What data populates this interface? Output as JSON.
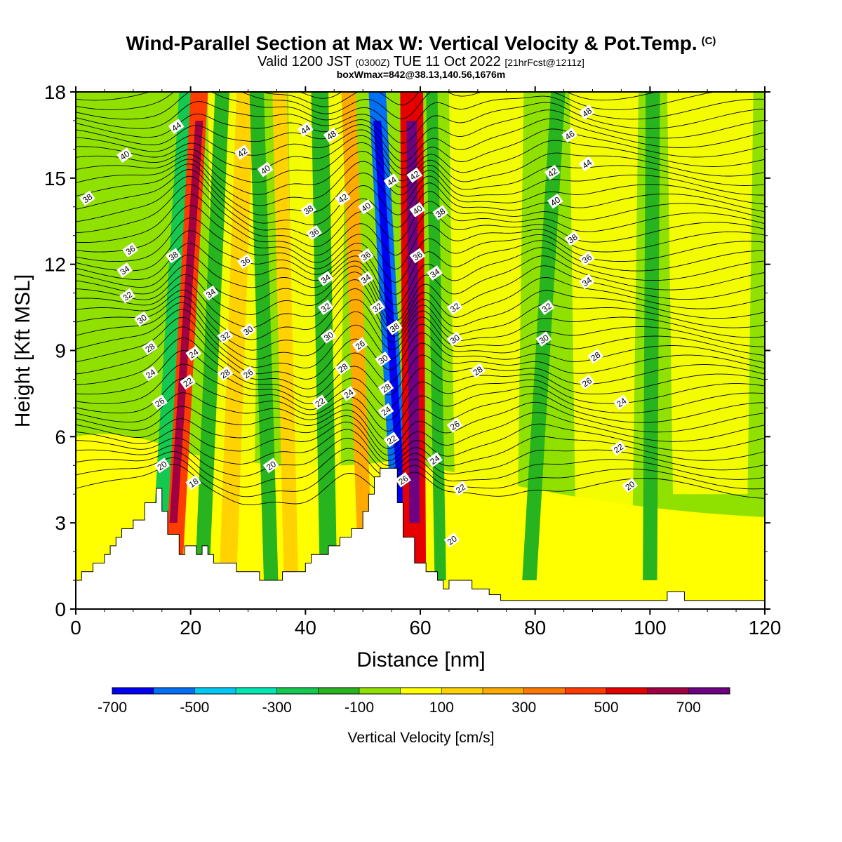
{
  "header": {
    "title": "Wind-Parallel Section at Max W: Vertical Velocity & Pot.Temp.",
    "copyright": "(C)",
    "valid_main": "Valid 1200 JST",
    "valid_utc": "(0300Z)",
    "valid_date": "TUE 11 Oct 2022",
    "forecast": "[21hrFcst@1211z]",
    "boxinfo": "boxWmax=842@38.13,140.56,1676m"
  },
  "colorbar": {
    "title": "Vertical Velocity [cm/s]",
    "levels": [
      -700,
      -600,
      -500,
      -400,
      -300,
      -200,
      -100,
      0,
      100,
      200,
      300,
      400,
      500,
      600,
      700,
      800
    ],
    "colors": [
      "#0000f5",
      "#0070f5",
      "#00c8f5",
      "#00e6b4",
      "#14c850",
      "#28b41e",
      "#91e100",
      "#ffff00",
      "#ffd200",
      "#ffaa00",
      "#ff7800",
      "#ff3c00",
      "#e60000",
      "#a00041",
      "#6e0082"
    ],
    "tick_labels": [
      "-700",
      "-500",
      "-300",
      "-100",
      "100",
      "300",
      "500",
      "700"
    ]
  },
  "chart_data": {
    "type": "heatmap",
    "title": "Wind-Parallel Section at Max W: Vertical Velocity & Pot.Temp.",
    "xlabel": "Distance [nm]",
    "ylabel": "Height [Kft MSL]",
    "xlim": [
      0,
      120
    ],
    "ylim": [
      0,
      18
    ],
    "x_ticks": [
      0,
      20,
      40,
      60,
      80,
      100,
      120
    ],
    "y_ticks": [
      0,
      3,
      6,
      9,
      12,
      15,
      18
    ],
    "terrain": {
      "x": [
        0,
        1,
        1,
        3,
        3,
        5,
        5,
        6,
        6,
        7,
        7,
        8,
        8,
        10,
        10,
        12,
        12,
        14,
        14,
        15,
        15,
        16,
        16,
        18,
        18,
        19,
        19,
        21,
        21,
        22,
        22,
        23,
        23,
        24,
        24,
        28,
        28,
        32,
        32,
        36,
        36,
        40,
        40,
        41,
        41,
        44,
        44,
        46,
        46,
        48,
        48,
        50,
        50,
        51,
        51,
        52,
        52,
        53,
        53,
        56,
        56,
        57,
        57,
        59,
        59,
        61,
        61,
        63,
        63,
        64,
        64,
        65,
        65,
        66,
        66,
        69,
        69,
        72,
        72,
        74,
        74,
        103,
        103,
        106,
        106,
        120
      ],
      "y": [
        1.0,
        1.0,
        1.3,
        1.3,
        1.6,
        1.6,
        1.9,
        1.9,
        2.2,
        2.2,
        2.5,
        2.5,
        2.8,
        2.8,
        3.1,
        3.1,
        3.7,
        3.7,
        4.2,
        4.2,
        3.4,
        3.4,
        2.6,
        2.6,
        1.9,
        1.9,
        2.2,
        2.2,
        1.9,
        1.9,
        2.2,
        2.2,
        1.9,
        1.9,
        1.6,
        1.6,
        1.3,
        1.3,
        1.0,
        1.0,
        1.3,
        1.3,
        1.6,
        1.6,
        1.9,
        1.9,
        2.2,
        2.2,
        2.5,
        2.5,
        2.8,
        2.8,
        3.4,
        3.4,
        4.0,
        4.0,
        4.6,
        4.6,
        4.9,
        4.9,
        3.7,
        3.7,
        2.5,
        2.5,
        1.6,
        1.6,
        1.3,
        1.3,
        1.0,
        1.0,
        0.7,
        0.7,
        1.0,
        1.0,
        1.0,
        1.0,
        0.7,
        0.7,
        0.5,
        0.5,
        0.3,
        0.3,
        0.6,
        0.6,
        0.3,
        0.3
      ]
    },
    "w_bands": [
      {
        "x_bottom": 14.5,
        "x_top": 19.5,
        "width": 3.0,
        "w": -300
      },
      {
        "x_bottom": 17.0,
        "x_top": 21.5,
        "width": 3.0,
        "w": 400
      },
      {
        "x_bottom": 22.0,
        "x_top": 25.5,
        "width": 2.5,
        "w": -150
      },
      {
        "x_bottom": 26.5,
        "x_top": 29.5,
        "width": 3.0,
        "w": 150
      },
      {
        "x_bottom": 34.0,
        "x_top": 31.5,
        "width": 2.5,
        "w": -200
      },
      {
        "x_bottom": 37.5,
        "x_top": 35.5,
        "width": 2.5,
        "w": 150
      },
      {
        "x_bottom": 44.0,
        "x_top": 42.5,
        "width": 3.0,
        "w": -200
      },
      {
        "x_bottom": 50.5,
        "x_top": 47.5,
        "width": 2.5,
        "w": 200
      },
      {
        "x_bottom": 57.0,
        "x_top": 52.5,
        "width": 3.0,
        "w": -600
      },
      {
        "x_bottom": 59.0,
        "x_top": 58.5,
        "width": 4.0,
        "w": 550
      },
      {
        "x_bottom": 63.5,
        "x_top": 62.0,
        "width": 2.0,
        "w": -150
      },
      {
        "x_bottom": 79.0,
        "x_top": 84.0,
        "width": 2.5,
        "w": -200
      },
      {
        "x_bottom": 100.0,
        "x_top": 100.5,
        "width": 2.5,
        "w": -150
      }
    ],
    "theta_contour_labels": [
      {
        "label": "44",
        "x": 17.5,
        "y": 16.8
      },
      {
        "label": "40",
        "x": 8.5,
        "y": 15.8
      },
      {
        "label": "38",
        "x": 2.0,
        "y": 14.3
      },
      {
        "label": "38",
        "x": 17.0,
        "y": 12.3
      },
      {
        "label": "36",
        "x": 9.5,
        "y": 12.5
      },
      {
        "label": "34",
        "x": 8.5,
        "y": 11.8
      },
      {
        "label": "32",
        "x": 9.0,
        "y": 10.9
      },
      {
        "label": "30",
        "x": 11.5,
        "y": 10.1
      },
      {
        "label": "28",
        "x": 12.9,
        "y": 9.1
      },
      {
        "label": "24",
        "x": 13.0,
        "y": 8.2
      },
      {
        "label": "26",
        "x": 14.6,
        "y": 7.2
      },
      {
        "label": "20",
        "x": 15.0,
        "y": 5.0
      },
      {
        "label": "18",
        "x": 20.5,
        "y": 4.4
      },
      {
        "label": "24",
        "x": 20.5,
        "y": 8.9
      },
      {
        "label": "22",
        "x": 19.5,
        "y": 7.9
      },
      {
        "label": "42",
        "x": 29.0,
        "y": 15.9
      },
      {
        "label": "40",
        "x": 33.0,
        "y": 15.3
      },
      {
        "label": "36",
        "x": 29.5,
        "y": 12.1
      },
      {
        "label": "34",
        "x": 23.5,
        "y": 11.0
      },
      {
        "label": "32",
        "x": 26.0,
        "y": 9.5
      },
      {
        "label": "30",
        "x": 30.0,
        "y": 9.7
      },
      {
        "label": "28",
        "x": 26.0,
        "y": 8.2
      },
      {
        "label": "26",
        "x": 30.0,
        "y": 8.2
      },
      {
        "label": "20",
        "x": 34.0,
        "y": 5.0
      },
      {
        "label": "44",
        "x": 40.0,
        "y": 16.7
      },
      {
        "label": "48",
        "x": 44.5,
        "y": 16.5
      },
      {
        "label": "38",
        "x": 40.5,
        "y": 13.9
      },
      {
        "label": "36",
        "x": 41.5,
        "y": 13.1
      },
      {
        "label": "42",
        "x": 46.5,
        "y": 14.3
      },
      {
        "label": "40",
        "x": 50.5,
        "y": 14.0
      },
      {
        "label": "36",
        "x": 50.5,
        "y": 12.3
      },
      {
        "label": "34",
        "x": 43.5,
        "y": 11.5
      },
      {
        "label": "34",
        "x": 50.5,
        "y": 11.5
      },
      {
        "label": "32",
        "x": 43.5,
        "y": 10.5
      },
      {
        "label": "30",
        "x": 44.0,
        "y": 9.5
      },
      {
        "label": "28",
        "x": 46.5,
        "y": 8.4
      },
      {
        "label": "26",
        "x": 49.5,
        "y": 9.2
      },
      {
        "label": "24",
        "x": 47.5,
        "y": 7.5
      },
      {
        "label": "22",
        "x": 42.5,
        "y": 7.2
      },
      {
        "label": "44",
        "x": 55.0,
        "y": 14.9
      },
      {
        "label": "42",
        "x": 59.0,
        "y": 15.1
      },
      {
        "label": "40",
        "x": 59.5,
        "y": 13.9
      },
      {
        "label": "38",
        "x": 63.5,
        "y": 13.8
      },
      {
        "label": "36",
        "x": 59.5,
        "y": 12.3
      },
      {
        "label": "34",
        "x": 62.5,
        "y": 11.7
      },
      {
        "label": "32",
        "x": 52.5,
        "y": 10.5
      },
      {
        "label": "38",
        "x": 55.5,
        "y": 9.8
      },
      {
        "label": "30",
        "x": 53.5,
        "y": 8.7
      },
      {
        "label": "28",
        "x": 54.0,
        "y": 7.7
      },
      {
        "label": "24",
        "x": 54.0,
        "y": 6.9
      },
      {
        "label": "22",
        "x": 55.0,
        "y": 5.9
      },
      {
        "label": "26",
        "x": 57.0,
        "y": 4.5
      },
      {
        "label": "24",
        "x": 62.5,
        "y": 5.2
      },
      {
        "label": "22",
        "x": 67.0,
        "y": 4.2
      },
      {
        "label": "26",
        "x": 66.0,
        "y": 6.4
      },
      {
        "label": "20",
        "x": 65.5,
        "y": 2.4
      },
      {
        "label": "32",
        "x": 66.0,
        "y": 10.5
      },
      {
        "label": "30",
        "x": 66.0,
        "y": 9.4
      },
      {
        "label": "28",
        "x": 70.0,
        "y": 8.3
      },
      {
        "label": "48",
        "x": 89.0,
        "y": 17.3
      },
      {
        "label": "46",
        "x": 86.0,
        "y": 16.5
      },
      {
        "label": "42",
        "x": 83.0,
        "y": 15.2
      },
      {
        "label": "44",
        "x": 89.0,
        "y": 15.5
      },
      {
        "label": "40",
        "x": 83.5,
        "y": 14.2
      },
      {
        "label": "38",
        "x": 86.5,
        "y": 12.9
      },
      {
        "label": "36",
        "x": 89.0,
        "y": 12.2
      },
      {
        "label": "34",
        "x": 89.0,
        "y": 11.4
      },
      {
        "label": "32",
        "x": 82.0,
        "y": 10.5
      },
      {
        "label": "30",
        "x": 81.5,
        "y": 9.4
      },
      {
        "label": "28",
        "x": 90.5,
        "y": 8.8
      },
      {
        "label": "26",
        "x": 89.0,
        "y": 7.9
      },
      {
        "label": "24",
        "x": 95.0,
        "y": 7.2
      },
      {
        "label": "22",
        "x": 94.5,
        "y": 5.6
      },
      {
        "label": "20",
        "x": 96.5,
        "y": 4.3
      }
    ]
  }
}
